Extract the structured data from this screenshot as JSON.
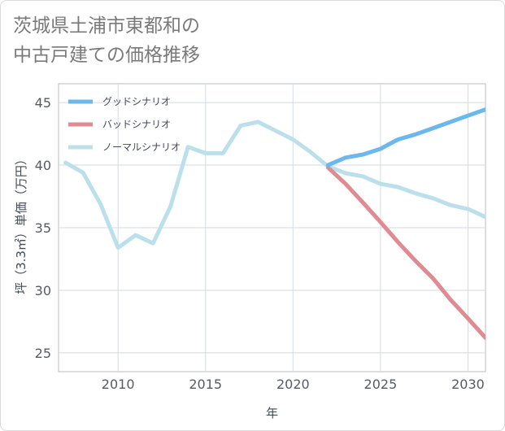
{
  "title_line1": "茨城県土浦市東都和の",
  "title_line2": "中古戸建ての価格推移",
  "chart_data": {
    "type": "line",
    "xlabel": "年",
    "ylabel": "坪（3.3㎡）単価（万円）",
    "xlim": [
      2006.6,
      2031
    ],
    "ylim": [
      23.5,
      46.5
    ],
    "xticks": [
      2010,
      2015,
      2020,
      2025,
      2030
    ],
    "yticks": [
      25,
      30,
      35,
      40,
      45
    ],
    "grid": true,
    "legend_position": "top-left",
    "series": [
      {
        "name": "グッドシナリオ",
        "color": "#6ab8ec",
        "x": [
          2022,
          2023,
          2024,
          2025,
          2026,
          2027,
          2028,
          2029,
          2030,
          2031
        ],
        "y": [
          40.0,
          40.6,
          40.85,
          41.3,
          42.05,
          42.45,
          42.95,
          43.45,
          43.95,
          44.45
        ]
      },
      {
        "name": "バッドシナリオ",
        "color": "#e08a92",
        "x": [
          2022,
          2023,
          2024,
          2025,
          2026,
          2027,
          2028,
          2029,
          2030,
          2031
        ],
        "y": [
          39.8,
          38.5,
          37.0,
          35.45,
          33.85,
          32.35,
          30.95,
          29.25,
          27.75,
          26.2
        ]
      },
      {
        "name": "ノーマルシナリオ",
        "color": "#bcdfec",
        "x": [
          2007,
          2008,
          2009,
          2010,
          2011,
          2012,
          2013,
          2014,
          2015,
          2016,
          2017,
          2018,
          2019,
          2020,
          2021,
          2022,
          2023,
          2024,
          2025,
          2026,
          2027,
          2028,
          2029,
          2030,
          2031
        ],
        "y": [
          40.2,
          39.4,
          36.9,
          33.4,
          34.4,
          33.75,
          36.7,
          41.45,
          40.95,
          40.95,
          43.15,
          43.45,
          42.75,
          42.05,
          41.05,
          39.9,
          39.35,
          39.1,
          38.5,
          38.25,
          37.75,
          37.35,
          36.8,
          36.5,
          35.85
        ]
      }
    ]
  }
}
